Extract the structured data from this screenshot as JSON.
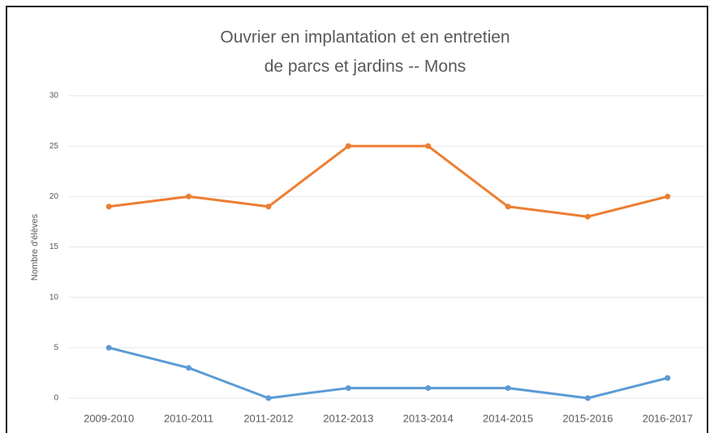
{
  "chart_data": {
    "type": "line",
    "title": [
      "Ouvrier en implantation et en entretien",
      "de parcs et jardins -- Mons"
    ],
    "y_label": "Nombre d'élèves",
    "categories": [
      "2009-2010",
      "2010-2011",
      "2011-2012",
      "2012-2013",
      "2013-2014",
      "2014-2015",
      "2015-2016",
      "2016-2017"
    ],
    "series": [
      {
        "color": "#ed7d31",
        "values": [
          19,
          20,
          19,
          25,
          25,
          19,
          18,
          20
        ]
      },
      {
        "color": "#5b9bd5",
        "values": [
          5,
          3,
          0,
          1,
          1,
          1,
          0,
          2
        ]
      }
    ],
    "ylim": [
      0,
      30
    ],
    "yticks": [
      0,
      5,
      10,
      15,
      20,
      25,
      30
    ],
    "grid": true
  }
}
